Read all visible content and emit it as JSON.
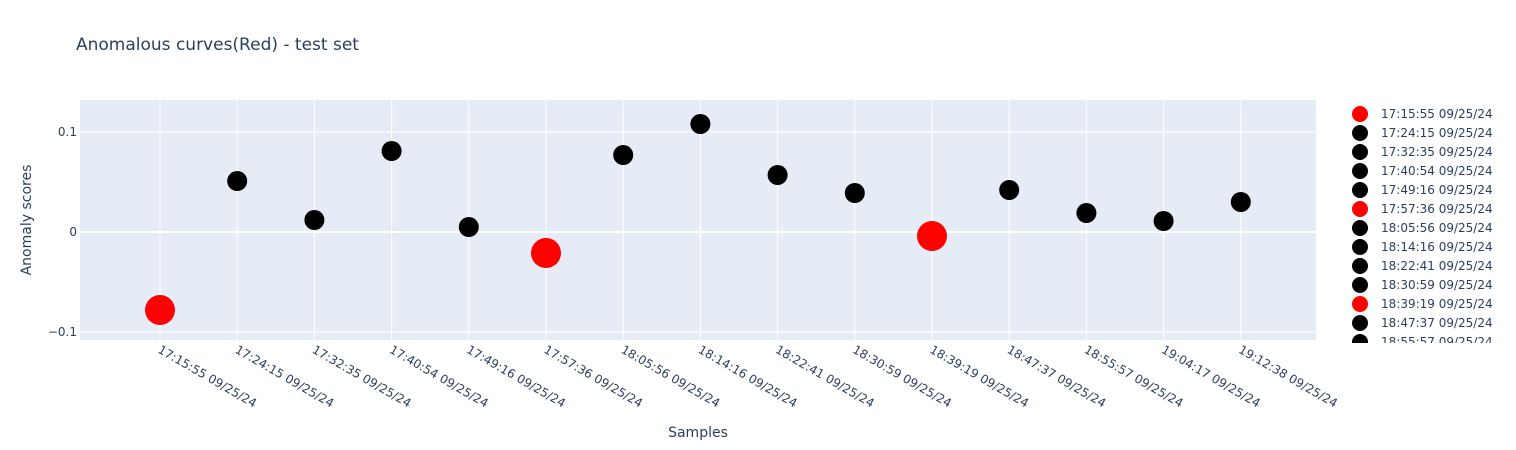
{
  "chart_data": {
    "type": "scatter",
    "title": "Anomalous curves(Red) - test set",
    "xlabel": "Samples",
    "ylabel": "Anomaly scores",
    "ylim": [
      -0.108,
      0.132
    ],
    "yticks": [
      {
        "value": 0.1,
        "label": "0.1"
      },
      {
        "value": 0,
        "label": "0"
      },
      {
        "value": -0.1,
        "label": "−0.1"
      }
    ],
    "grid": true,
    "legend_position": "right",
    "colors": {
      "anomalous": "#ff0000",
      "normal": "#000000",
      "plot_bg": "#e5ecf6",
      "grid": "#ffffff",
      "text": "#2a3f5f"
    },
    "points": [
      {
        "x": "17:15:55 09/25/24",
        "y": -0.078,
        "anomalous": true
      },
      {
        "x": "17:24:15 09/25/24",
        "y": 0.051,
        "anomalous": false
      },
      {
        "x": "17:32:35 09/25/24",
        "y": 0.012,
        "anomalous": false
      },
      {
        "x": "17:40:54 09/25/24",
        "y": 0.081,
        "anomalous": false
      },
      {
        "x": "17:49:16 09/25/24",
        "y": 0.005,
        "anomalous": false
      },
      {
        "x": "17:57:36 09/25/24",
        "y": -0.021,
        "anomalous": true
      },
      {
        "x": "18:05:56 09/25/24",
        "y": 0.077,
        "anomalous": false
      },
      {
        "x": "18:14:16 09/25/24",
        "y": 0.108,
        "anomalous": false
      },
      {
        "x": "18:22:41 09/25/24",
        "y": 0.057,
        "anomalous": false
      },
      {
        "x": "18:30:59 09/25/24",
        "y": 0.039,
        "anomalous": false
      },
      {
        "x": "18:39:19 09/25/24",
        "y": -0.004,
        "anomalous": true
      },
      {
        "x": "18:47:37 09/25/24",
        "y": 0.042,
        "anomalous": false
      },
      {
        "x": "18:55:57 09/25/24",
        "y": 0.019,
        "anomalous": false
      },
      {
        "x": "19:04:17 09/25/24",
        "y": 0.011,
        "anomalous": false
      },
      {
        "x": "19:12:38 09/25/24",
        "y": 0.03,
        "anomalous": false
      }
    ]
  }
}
